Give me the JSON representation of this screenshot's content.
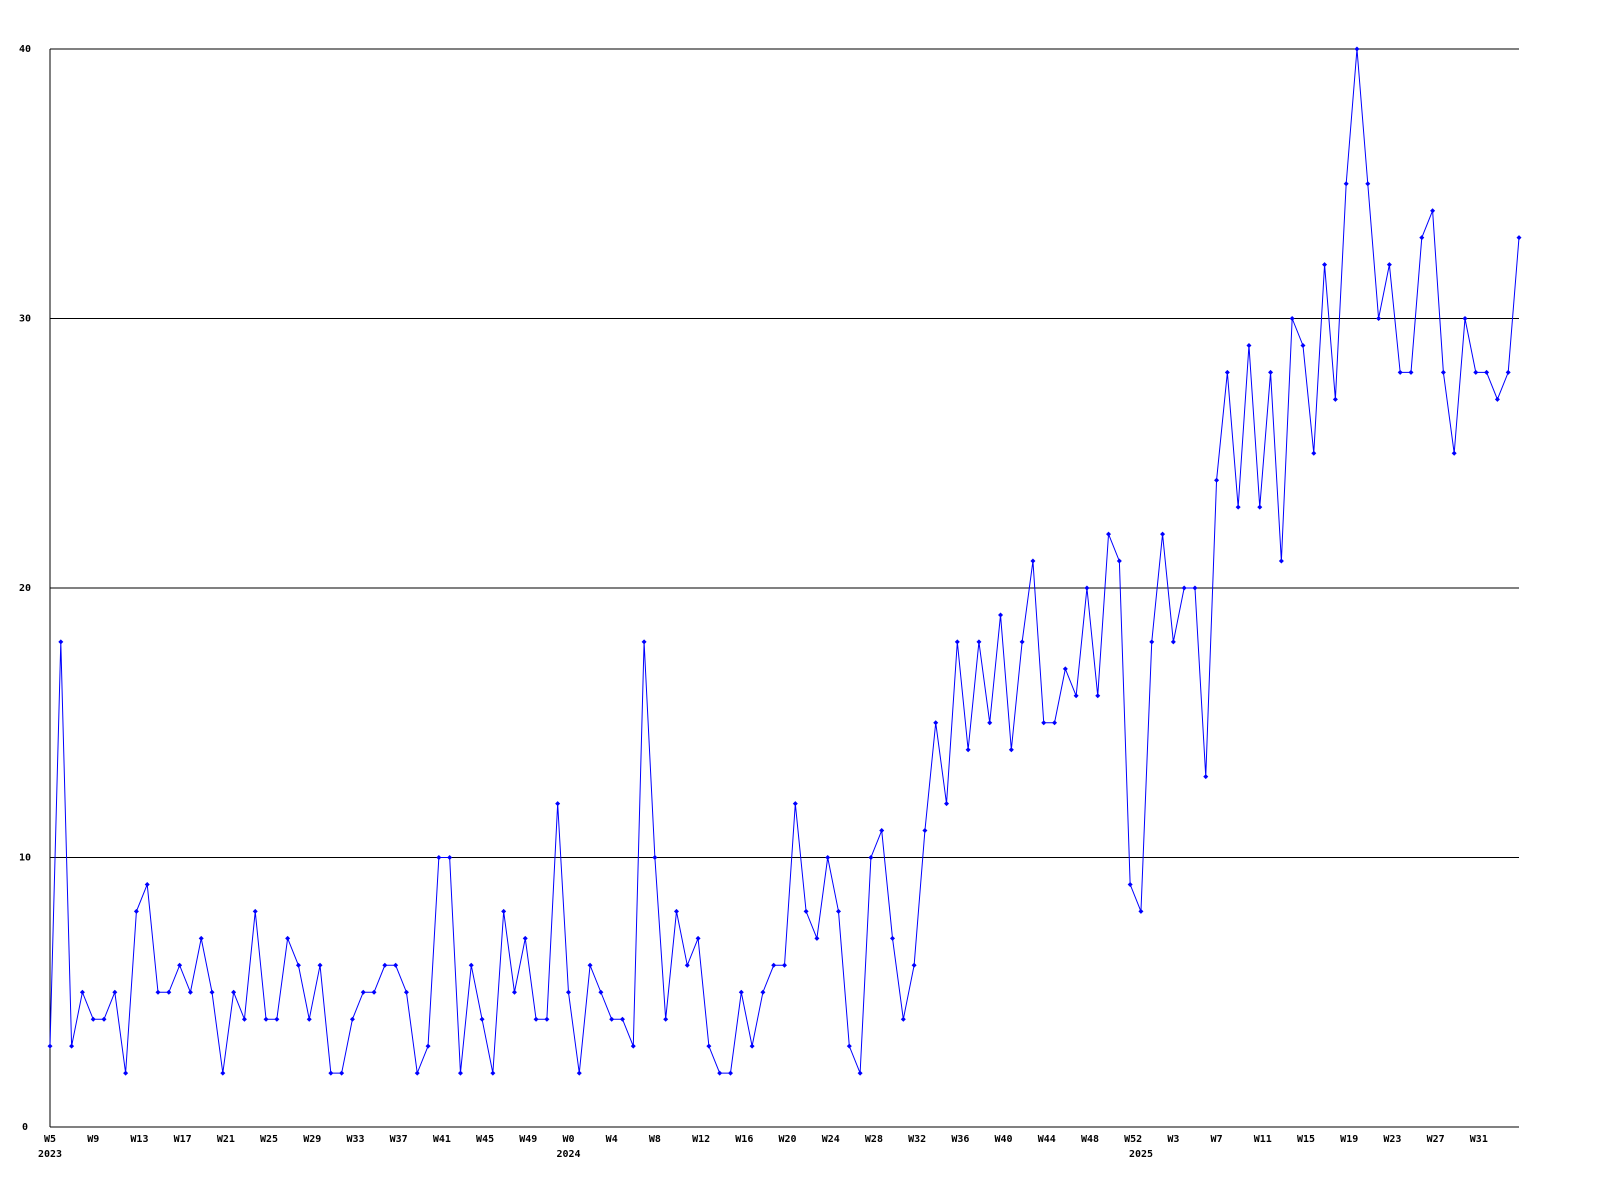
{
  "chart_data": {
    "type": "line",
    "color": "#0000ff",
    "axis_color": "#000000",
    "grid": true,
    "ylim": [
      0,
      40
    ],
    "yticks": [
      0,
      10,
      20,
      30,
      40
    ],
    "categories": [
      "W5",
      null,
      null,
      null,
      "W9",
      null,
      null,
      null,
      "W13",
      null,
      null,
      null,
      "W17",
      null,
      null,
      null,
      "W21",
      null,
      null,
      null,
      "W25",
      null,
      null,
      null,
      "W29",
      null,
      null,
      null,
      "W33",
      null,
      null,
      null,
      "W37",
      null,
      null,
      null,
      "W41",
      null,
      null,
      null,
      "W45",
      null,
      null,
      null,
      "W49",
      null,
      null,
      null,
      "W0",
      null,
      null,
      null,
      "W4",
      null,
      null,
      null,
      "W8",
      null,
      null,
      null,
      "W12",
      null,
      null,
      null,
      "W16",
      null,
      null,
      null,
      "W20",
      null,
      null,
      null,
      "W24",
      null,
      null,
      null,
      "W28",
      null,
      null,
      null,
      "W32",
      null,
      null,
      null,
      "W36",
      null,
      null,
      null,
      "W40",
      null,
      null,
      null,
      "W44",
      null,
      null,
      null,
      "W48",
      null,
      null,
      null,
      "W52",
      null,
      null,
      null,
      "W3",
      null,
      null,
      null,
      "W7",
      null,
      null,
      null,
      "W11",
      null,
      null,
      null,
      "W15",
      null,
      null,
      null,
      "W19",
      null,
      null,
      null,
      "W23",
      null,
      null,
      null,
      "W27",
      null,
      null,
      null,
      "W31",
      null,
      null,
      null,
      null
    ],
    "category_years": [
      "2023",
      null,
      null,
      null,
      null,
      null,
      null,
      null,
      null,
      null,
      null,
      null,
      null,
      null,
      null,
      null,
      null,
      null,
      null,
      null,
      null,
      null,
      null,
      null,
      null,
      null,
      null,
      null,
      null,
      null,
      null,
      null,
      null,
      null,
      null,
      null,
      null,
      null,
      null,
      null,
      null,
      null,
      null,
      null,
      null,
      null,
      null,
      null,
      "2024",
      null,
      null,
      null,
      null,
      null,
      null,
      null,
      null,
      null,
      null,
      null,
      null,
      null,
      null,
      null,
      null,
      null,
      null,
      null,
      null,
      null,
      null,
      null,
      null,
      null,
      null,
      null,
      null,
      null,
      null,
      null,
      null,
      null,
      null,
      null,
      null,
      null,
      null,
      null,
      null,
      null,
      null,
      null,
      null,
      null,
      null,
      null,
      null,
      null,
      null,
      null,
      null,
      "2025",
      null,
      null,
      null,
      null,
      null,
      null,
      null,
      null,
      null,
      null,
      null,
      null,
      null,
      null,
      null,
      null,
      null,
      null,
      null,
      null,
      null,
      null,
      null,
      null,
      null,
      null,
      null,
      null,
      null,
      null,
      null,
      null,
      null,
      null,
      null
    ],
    "values": [
      3,
      18,
      3,
      5,
      4,
      4,
      5,
      2,
      8,
      9,
      5,
      5,
      6,
      5,
      7,
      5,
      2,
      5,
      4,
      8,
      4,
      4,
      7,
      6,
      4,
      6,
      2,
      2,
      4,
      5,
      5,
      6,
      6,
      5,
      2,
      3,
      10,
      10,
      2,
      6,
      4,
      2,
      8,
      5,
      7,
      4,
      4,
      12,
      5,
      2,
      6,
      5,
      4,
      4,
      3,
      18,
      10,
      4,
      8,
      6,
      7,
      3,
      2,
      2,
      5,
      3,
      5,
      6,
      6,
      12,
      8,
      7,
      10,
      8,
      3,
      2,
      10,
      11,
      7,
      4,
      6,
      11,
      15,
      12,
      18,
      14,
      18,
      15,
      19,
      14,
      18,
      21,
      15,
      15,
      17,
      16,
      20,
      16,
      22,
      21,
      9,
      8,
      18,
      22,
      18,
      20,
      20,
      13,
      24,
      28,
      23,
      29,
      23,
      28,
      21,
      30,
      29,
      25,
      32,
      27,
      35,
      40,
      35,
      30,
      32,
      28,
      28,
      33,
      34,
      28,
      25,
      30,
      28,
      28,
      27,
      28,
      33
    ]
  }
}
